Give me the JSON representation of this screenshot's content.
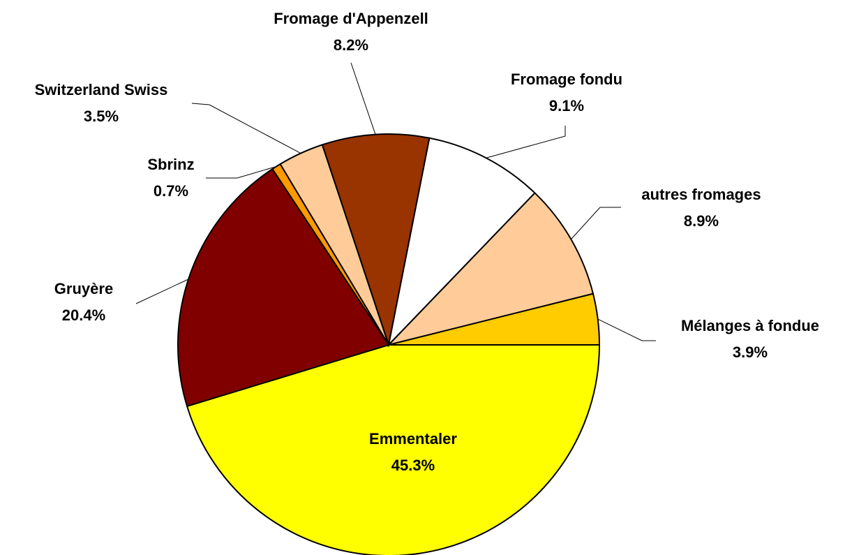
{
  "chart_data": {
    "type": "pie",
    "categories": [
      "Emmentaler",
      "Gruyère",
      "Sbrinz",
      "Switzerland Swiss",
      "Fromage d'Appenzell",
      "Fromage fondu",
      "autres fromages",
      "Mélanges à fondue"
    ],
    "values": [
      45.3,
      20.4,
      0.7,
      3.5,
      8.2,
      9.1,
      8.9,
      3.9
    ],
    "value_labels": [
      "45.3%",
      "20.4%",
      "0.7%",
      "3.5%",
      "8.2%",
      "9.1%",
      "8.9%",
      "3.9%"
    ],
    "colors": [
      "#FFFF00",
      "#800000",
      "#FF9900",
      "#FFCC99",
      "#993300",
      "#FFFFFF",
      "#FFCC99",
      "#FFCC00"
    ]
  }
}
